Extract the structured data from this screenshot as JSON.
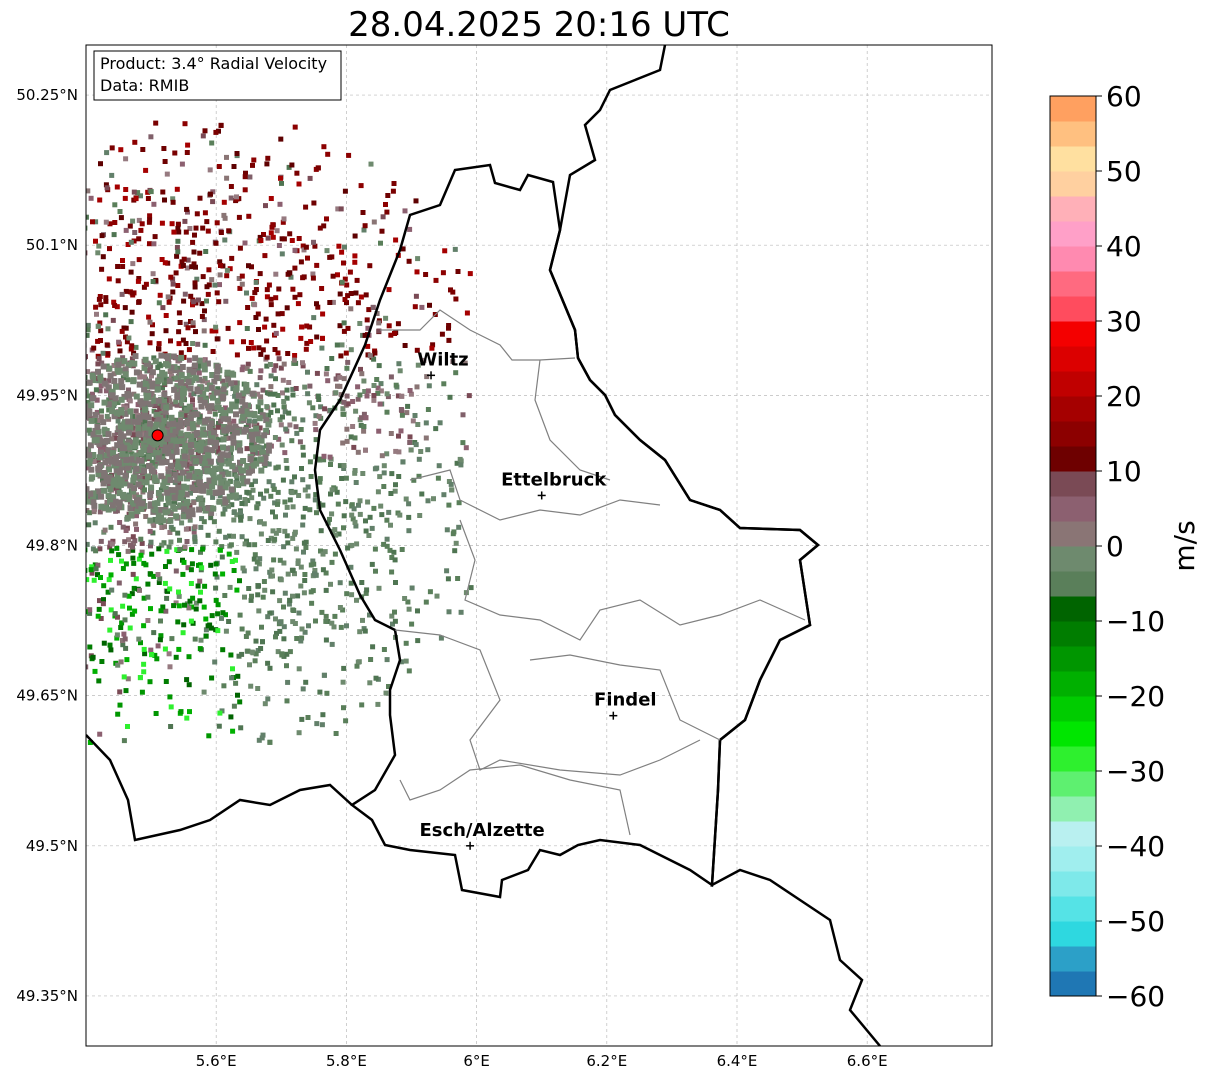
{
  "title": "28.04.2025 20:16 UTC",
  "info_box": {
    "product": "Product: 3.4° Radial Velocity",
    "data_source": "Data: RMIB"
  },
  "axes": {
    "lon_ticks": [
      "5.6°E",
      "5.8°E",
      "6°E",
      "6.2°E",
      "6.4°E",
      "6.6°E"
    ],
    "lat_ticks": [
      "50.25°N",
      "50.1°N",
      "49.95°N",
      "49.8°N",
      "49.65°N",
      "49.5°N",
      "49.35°N"
    ],
    "grid": true
  },
  "cities": [
    {
      "name": "Wiltz",
      "lon": 5.93,
      "lat": 49.97
    },
    {
      "name": "Ettelbruck",
      "lon": 6.1,
      "lat": 49.85
    },
    {
      "name": "Findel",
      "lon": 6.21,
      "lat": 49.63
    },
    {
      "name": "Esch/Alzette",
      "lon": 5.99,
      "lat": 49.5
    }
  ],
  "radar_site": {
    "lon": 5.51,
    "lat": 49.91,
    "color": "#ff0000"
  },
  "colorbar": {
    "unit": "m/s",
    "min": -60,
    "max": 60,
    "tick_labels": [
      "60",
      "50",
      "40",
      "30",
      "20",
      "10",
      "0",
      "−10",
      "−20",
      "−30",
      "−40",
      "−50",
      "−60"
    ],
    "colors": [
      "#1f77b4",
      "#2ca0c8",
      "#2ed8e0",
      "#55e3e6",
      "#7ee9ea",
      "#a0eeee",
      "#b9f0f0",
      "#90f0b0",
      "#5ef070",
      "#2ef02e",
      "#00e600",
      "#00cc00",
      "#00b000",
      "#009600",
      "#007d00",
      "#006400",
      "#5a7f5a",
      "#6e8a6e",
      "#8a7575",
      "#8c6070",
      "#7a4a55",
      "#6e0000",
      "#8c0000",
      "#a50000",
      "#c00000",
      "#dc0000",
      "#f40000",
      "#ff4c5e",
      "#ff6a80",
      "#ff8ab0",
      "#ffa0c8",
      "#ffb0b8",
      "#ffd0a0",
      "#ffe0a0",
      "#ffc080",
      "#ffa060"
    ]
  },
  "styles": {
    "border_color": "#000000",
    "district_color": "#808080",
    "grid_color": "#bbbbbb"
  }
}
